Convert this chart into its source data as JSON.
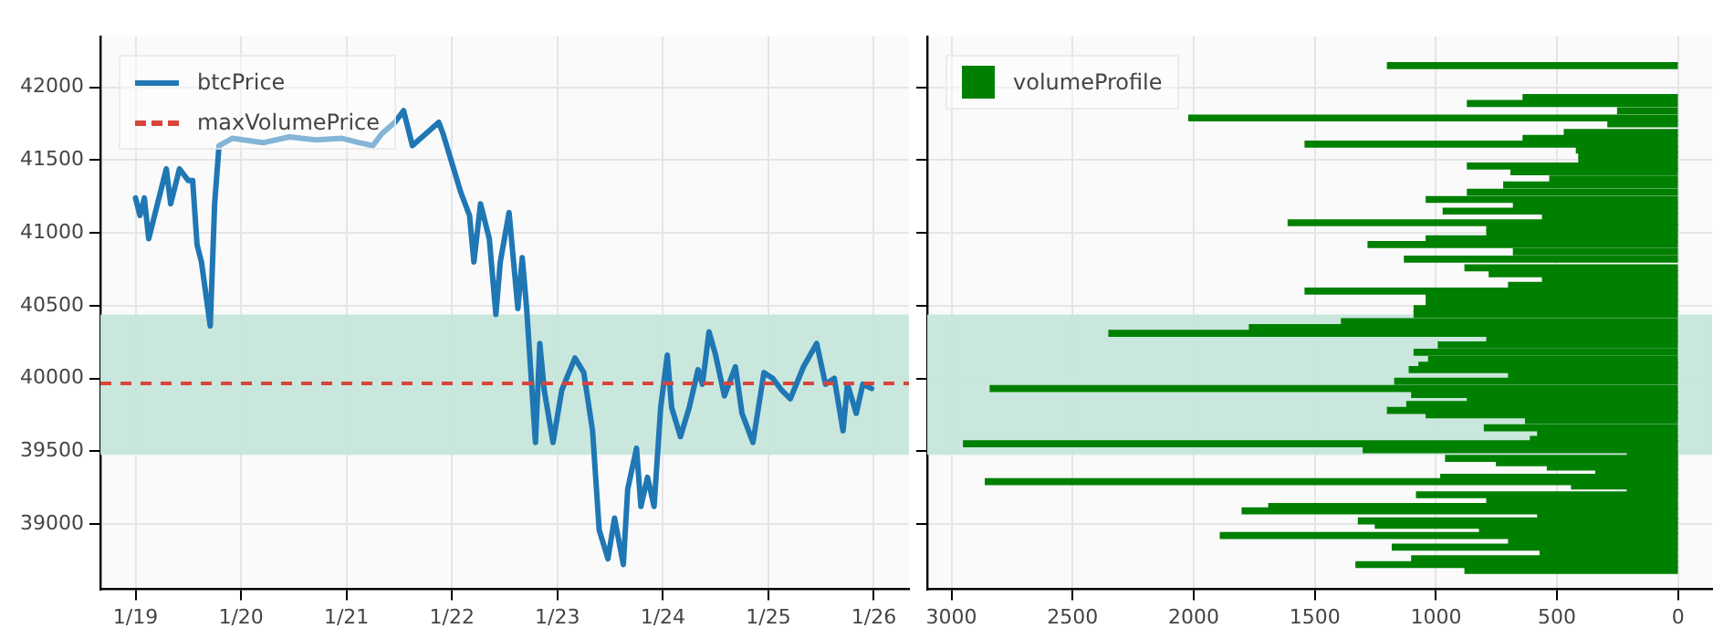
{
  "chart_data": [
    {
      "type": "line",
      "x": [
        "--01-19T00:00",
        "--01-19T01:00",
        "--01-19T02:00",
        "--01-19T03:00",
        "--01-19T05:00",
        "--01-19T07:00",
        "--01-19T08:00",
        "--01-19T10:00",
        "--01-19T12:00",
        "--01-19T13:00",
        "--01-19T14:00",
        "--01-19T15:00",
        "--01-19T17:00",
        "--01-19T18:00",
        "--01-19T19:00",
        "--01-19T22:00",
        "--01-20T05:00",
        "--01-20T11:00",
        "--01-20T17:00",
        "--01-20T23:00",
        "--01-21T03:00",
        "--01-21T06:00",
        "--01-21T08:00",
        "--01-21T11:00",
        "--01-21T13:00",
        "--01-21T15:00",
        "--01-21T18:00",
        "--01-21T21:00",
        "--01-21T22:00",
        "--01-22T00:00",
        "--01-22T02:00",
        "--01-22T04:00",
        "--01-22T05:00",
        "--01-22T06:30",
        "--01-22T08:30",
        "--01-22T10:00",
        "--01-22T11:00",
        "--01-22T13:00",
        "--01-22T15:00",
        "--01-22T16:00",
        "--01-22T17:00",
        "--01-22T19:00",
        "--01-22T20:00",
        "--01-22T21:00",
        "--01-22T23:00",
        "--01-23T01:00",
        "--01-23T04:00",
        "--01-23T06:00",
        "--01-23T08:00",
        "--01-23T09:30",
        "--01-23T11:30",
        "--01-23T13:00",
        "--01-23T15:00",
        "--01-23T16:00",
        "--01-23T18:00",
        "--01-23T19:00",
        "--01-23T20:30",
        "--01-23T22:00",
        "--01-23T23:30",
        "--01-24T01:00",
        "--01-24T02:00",
        "--01-24T04:00",
        "--01-24T06:00",
        "--01-24T08:00",
        "--01-24T09:00",
        "--01-24T10:30",
        "--01-24T12:00",
        "--01-24T14:00",
        "--01-24T16:30",
        "--01-24T18:00",
        "--01-24T20:30",
        "--01-24T23:00",
        "--01-25T01:00",
        "--01-25T03:00",
        "--01-25T05:00",
        "--01-25T08:00",
        "--01-25T11:00",
        "--01-25T13:00",
        "--01-25T15:00",
        "--01-25T17:00",
        "--01-25T18:00",
        "--01-25T20:00",
        "--01-25T21:30",
        "--01-25T23:30"
      ],
      "series": [
        {
          "name": "btcPrice",
          "color": "#1f77b4",
          "values": [
            41240,
            41120,
            41240,
            40960,
            41200,
            41440,
            41200,
            41440,
            41360,
            41360,
            40920,
            40800,
            40360,
            41200,
            41600,
            41650,
            41620,
            41660,
            41640,
            41650,
            41620,
            41600,
            41680,
            41760,
            41840,
            41600,
            41680,
            41760,
            41680,
            41480,
            41280,
            41120,
            40800,
            41200,
            40960,
            40440,
            40800,
            41140,
            40480,
            40830,
            40480,
            39560,
            40240,
            39920,
            39560,
            39920,
            40140,
            40040,
            39640,
            38960,
            38760,
            39040,
            38720,
            39240,
            39520,
            39120,
            39320,
            39120,
            39800,
            40160,
            39800,
            39600,
            39800,
            40060,
            39960,
            40320,
            40160,
            39880,
            40080,
            39760,
            39560,
            40040,
            40000,
            39920,
            39860,
            40080,
            40240,
            39960,
            40000,
            39640,
            39960,
            39760,
            39960,
            39930
          ]
        }
      ],
      "xlim": [
        "--01-18T16:00",
        "--01-26T08:00"
      ],
      "xticks": [
        {
          "value": "--01-19",
          "label": "1/19"
        },
        {
          "value": "--01-20",
          "label": "1/20"
        },
        {
          "value": "--01-21",
          "label": "1/21"
        },
        {
          "value": "--01-22",
          "label": "1/22"
        },
        {
          "value": "--01-23",
          "label": "1/23"
        },
        {
          "value": "--01-24",
          "label": "1/24"
        },
        {
          "value": "--01-25",
          "label": "1/25"
        },
        {
          "value": "--01-26",
          "label": "1/26"
        }
      ],
      "ylim": [
        38550,
        42350
      ],
      "yticks": [
        39000,
        39500,
        40000,
        40500,
        41000,
        41500,
        42000
      ],
      "grid": true,
      "legend": "top left",
      "line_style": "solid",
      "bands": [
        {
          "axis": "y",
          "from": 39475,
          "to": 40440,
          "color": "#c7e6dc"
        }
      ],
      "ref_lines": [
        {
          "axis": "y",
          "value": 39965,
          "label": "maxVolumePrice",
          "color": "#d9453a",
          "line_style": "dashed"
        }
      ]
    },
    {
      "type": "bar",
      "orientation": "horizontal",
      "x": [
        42150,
        41930,
        41890,
        41840,
        41790,
        41750,
        41690,
        41650,
        41610,
        41570,
        41540,
        41500,
        41460,
        41420,
        41370,
        41330,
        41280,
        41230,
        41190,
        41150,
        41110,
        41070,
        41040,
        41000,
        40960,
        40920,
        40870,
        40820,
        40760,
        40720,
        40680,
        40640,
        40600,
        40560,
        40520,
        40480,
        40440,
        40390,
        40350,
        40310,
        40270,
        40230,
        40180,
        40130,
        40090,
        40060,
        40020,
        39980,
        39930,
        39890,
        39850,
        39820,
        39780,
        39750,
        39710,
        39660,
        39620,
        39580,
        39550,
        39510,
        39480,
        39450,
        39420,
        39390,
        39360,
        39320,
        39290,
        39260,
        39230,
        39200,
        39160,
        39120,
        39090,
        39050,
        39020,
        38990,
        38950,
        38920,
        38880,
        38840,
        38800,
        38760,
        38720,
        38680
      ],
      "series": [
        {
          "name": "volumeProfile",
          "color": "#008000",
          "values": [
            1200,
            640,
            870,
            250,
            2020,
            290,
            470,
            640,
            1540,
            420,
            410,
            410,
            870,
            690,
            530,
            720,
            870,
            1040,
            680,
            970,
            560,
            1610,
            790,
            790,
            1040,
            1280,
            680,
            1130,
            880,
            780,
            560,
            700,
            1540,
            1040,
            1040,
            1090,
            1090,
            1390,
            1770,
            2350,
            790,
            990,
            1090,
            1030,
            1070,
            1110,
            700,
            1170,
            2840,
            1100,
            870,
            1120,
            1200,
            1040,
            630,
            800,
            580,
            610,
            2950,
            1300,
            210,
            960,
            750,
            540,
            340,
            980,
            2860,
            440,
            210,
            1080,
            790,
            1690,
            1800,
            580,
            1320,
            1250,
            820,
            1890,
            700,
            1180,
            570,
            1100,
            1330,
            880
          ]
        }
      ],
      "xlim": [
        3100,
        -140
      ],
      "xticks": [
        3000,
        2500,
        2000,
        1500,
        1000,
        500,
        0
      ],
      "ylim": [
        38550,
        42350
      ],
      "yticks": [
        39000,
        39500,
        40000,
        40500,
        41000,
        41500,
        42000
      ],
      "tick_labels": "x",
      "grid": true,
      "legend": "top left",
      "bands": [
        {
          "axis": "y",
          "from": 39475,
          "to": 40440,
          "color": "#c7e6dc"
        }
      ]
    }
  ]
}
